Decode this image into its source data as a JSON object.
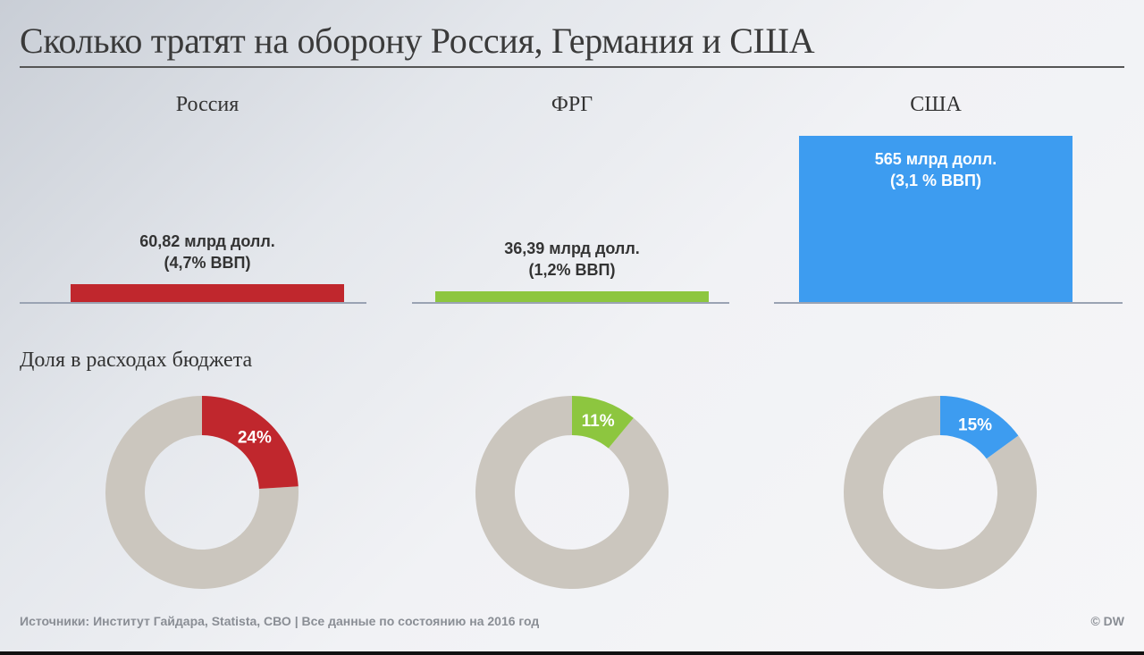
{
  "title": "Сколько тратят на оборону Россия, Германия и США",
  "section_title": "Доля в расходах бюджета",
  "footer": {
    "sources": "Источники: Институт Гайдара, Statista, СВО | Все данные по состоянию на 2016 год",
    "credit": "© DW"
  },
  "colors": {
    "russia": "#c0272d",
    "germany": "#8dc63f",
    "usa": "#3d9cf0",
    "donut_rest": "#cbc6be"
  },
  "chart_data": [
    {
      "type": "bar",
      "categories": [
        "Россия",
        "ФРГ",
        "США"
      ],
      "values": [
        60.82,
        36.39,
        565
      ],
      "unit": "млрд долл.",
      "ylim": [
        0,
        600
      ],
      "grid": false,
      "labels": [
        {
          "line1": "60,82 млрд долл.",
          "line2": "(4,7% ВВП)"
        },
        {
          "line1": "36,39 млрд долл.",
          "line2": "(1,2% ВВП)"
        },
        {
          "line1": "565 млрд долл.",
          "line2": "(3,1 % ВВП)"
        }
      ]
    },
    {
      "type": "pie",
      "title": "Доля в расходах бюджета",
      "categories": [
        "Россия",
        "ФРГ",
        "США"
      ],
      "values": [
        24,
        11,
        15
      ],
      "labels": [
        "24%",
        "11%",
        "15%"
      ]
    }
  ]
}
